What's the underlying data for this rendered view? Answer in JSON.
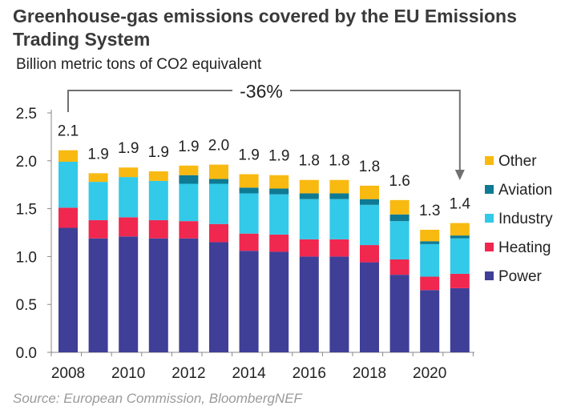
{
  "title": "Greenhouse-gas emissions covered by the EU Emissions Trading System",
  "source": "Source: European Commission, BloombergNEF",
  "chart_data": {
    "type": "bar",
    "stacked": true,
    "title": "Greenhouse-gas emissions covered by the EU Emissions Trading System",
    "ylabel": "Billion metric tons of CO2 equivalent",
    "xlabel": "",
    "ylim": [
      0,
      2.5
    ],
    "yticks": [
      "0.0",
      "0.5",
      "1.0",
      "1.5",
      "2.0",
      "2.5"
    ],
    "categories": [
      "2008",
      "2009",
      "2010",
      "2011",
      "2012",
      "2013",
      "2014",
      "2015",
      "2016",
      "2017",
      "2018",
      "2019",
      "2020",
      "2021"
    ],
    "xtick_labels": [
      "2008",
      "",
      "2010",
      "",
      "2012",
      "",
      "2014",
      "",
      "2016",
      "",
      "2018",
      "",
      "2020",
      ""
    ],
    "series": [
      {
        "name": "Power",
        "color": "#3f3f98",
        "values": [
          1.3,
          1.19,
          1.21,
          1.19,
          1.19,
          1.15,
          1.06,
          1.05,
          1.0,
          1.0,
          0.94,
          0.81,
          0.65,
          0.67
        ]
      },
      {
        "name": "Heating",
        "color": "#f0274f",
        "values": [
          0.21,
          0.19,
          0.2,
          0.19,
          0.18,
          0.19,
          0.18,
          0.18,
          0.18,
          0.18,
          0.18,
          0.16,
          0.14,
          0.15
        ]
      },
      {
        "name": "Industry",
        "color": "#33c9e8",
        "values": [
          0.48,
          0.4,
          0.42,
          0.41,
          0.39,
          0.42,
          0.42,
          0.42,
          0.42,
          0.42,
          0.42,
          0.4,
          0.34,
          0.37
        ]
      },
      {
        "name": "Aviation",
        "color": "#0e7a93",
        "values": [
          0.0,
          0.0,
          0.0,
          0.0,
          0.09,
          0.05,
          0.06,
          0.06,
          0.06,
          0.06,
          0.06,
          0.07,
          0.03,
          0.03
        ]
      },
      {
        "name": "Other",
        "color": "#f8b911",
        "values": [
          0.12,
          0.09,
          0.1,
          0.1,
          0.1,
          0.15,
          0.14,
          0.14,
          0.14,
          0.14,
          0.14,
          0.15,
          0.12,
          0.13
        ]
      }
    ],
    "totals": [
      "2.1",
      "1.9",
      "1.9",
      "1.9",
      "1.9",
      "2.0",
      "1.9",
      "1.9",
      "1.8",
      "1.8",
      "1.8",
      "1.6",
      "1.3",
      "1.4"
    ],
    "annotation": {
      "text": "-36%",
      "from": "2008",
      "to": "2021"
    },
    "legend": {
      "position": "right",
      "order": [
        "Other",
        "Aviation",
        "Industry",
        "Heating",
        "Power"
      ]
    },
    "grid": false
  }
}
